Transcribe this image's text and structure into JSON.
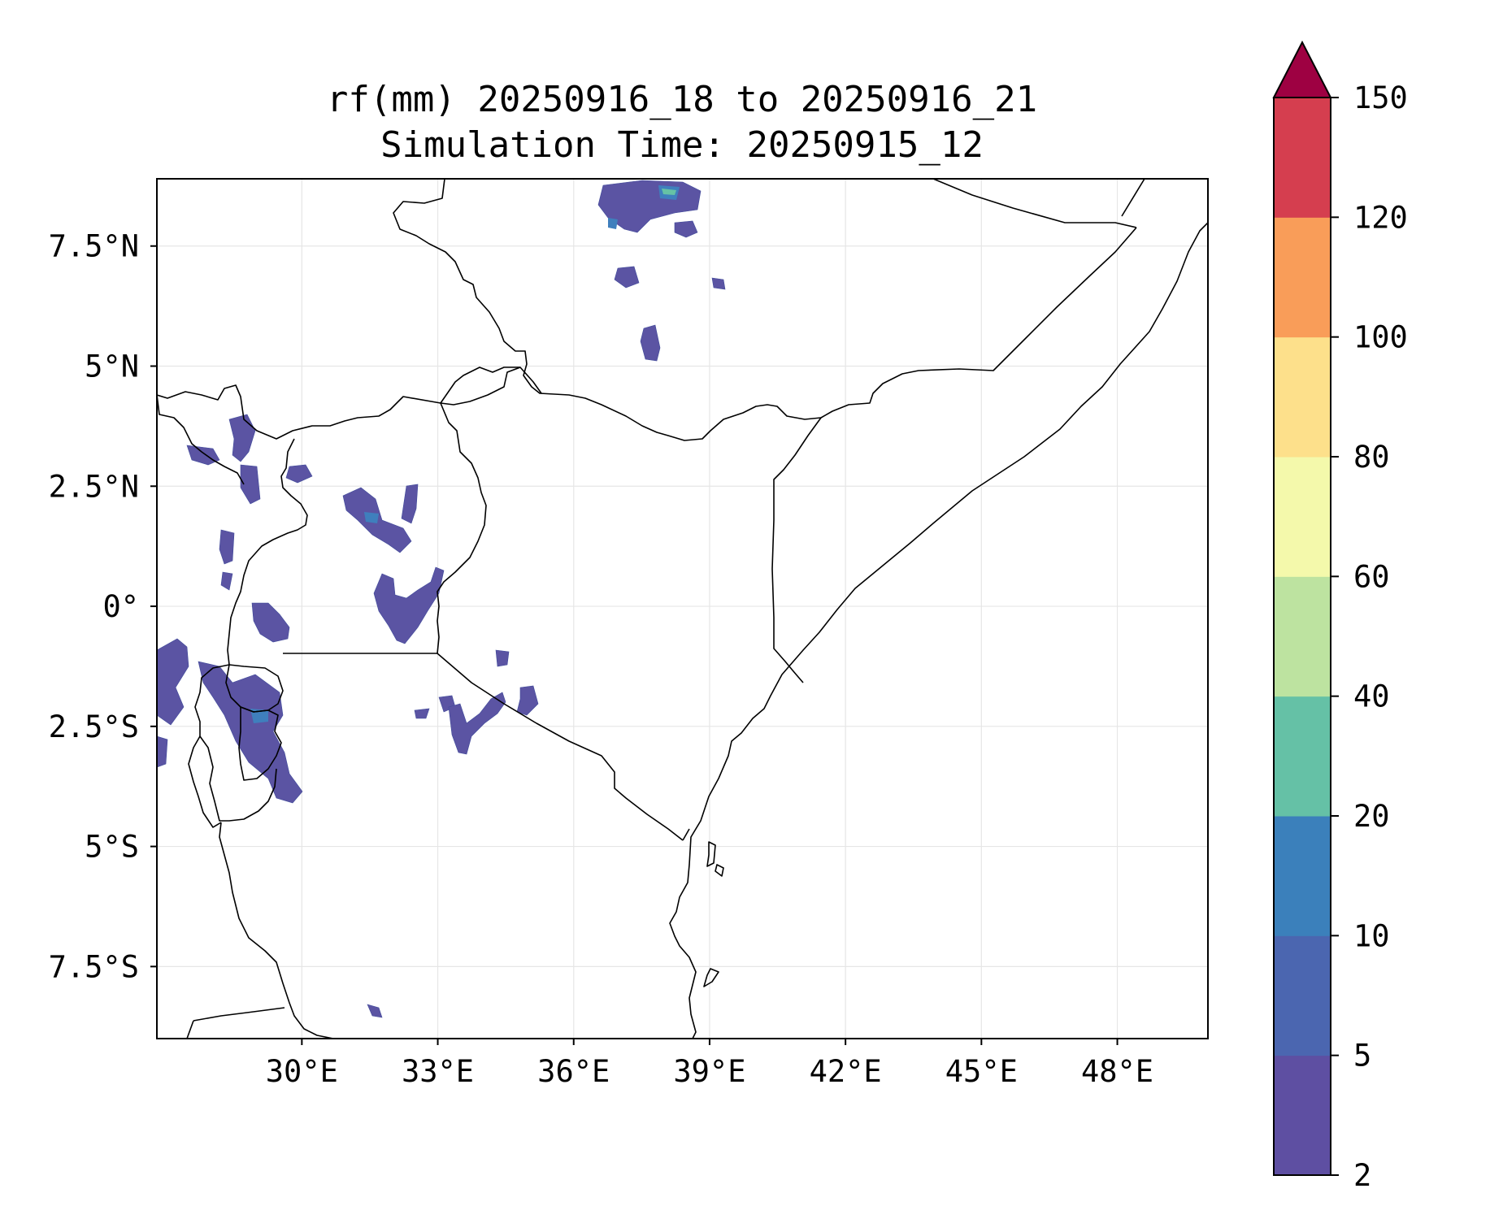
{
  "title": {
    "line1": "rf(mm) 20250916_18 to 20250916_21",
    "line2": "Simulation Time: 20250915_12"
  },
  "map": {
    "lon_range": [
      26.8,
      50.0
    ],
    "lat_range": [
      -9.0,
      8.9
    ],
    "lon_ticks": [
      {
        "value": 30,
        "label": "30°E"
      },
      {
        "value": 33,
        "label": "33°E"
      },
      {
        "value": 36,
        "label": "36°E"
      },
      {
        "value": 39,
        "label": "39°E"
      },
      {
        "value": 42,
        "label": "42°E"
      },
      {
        "value": 45,
        "label": "45°E"
      },
      {
        "value": 48,
        "label": "48°E"
      }
    ],
    "lat_ticks": [
      {
        "value": 7.5,
        "label": "7.5°N"
      },
      {
        "value": 5,
        "label": "5°N"
      },
      {
        "value": 2.5,
        "label": "2.5°N"
      },
      {
        "value": 0,
        "label": "0°"
      },
      {
        "value": -2.5,
        "label": "2.5°S"
      },
      {
        "value": -5,
        "label": "5°S"
      },
      {
        "value": -7.5,
        "label": "7.5°S"
      }
    ],
    "gridlines": true
  },
  "colorbar": {
    "extend": "max",
    "levels": [
      {
        "label": "2"
      },
      {
        "label": "5"
      },
      {
        "label": "10"
      },
      {
        "label": "20"
      },
      {
        "label": "40"
      },
      {
        "label": "60"
      },
      {
        "label": "80"
      },
      {
        "label": "100"
      },
      {
        "label": "120"
      },
      {
        "label": "150"
      }
    ],
    "colors": [
      "#5e4fa2",
      "#4b66b0",
      "#3b80bb",
      "#65c1a6",
      "#bde3a0",
      "#f4f9ab",
      "#fde08b",
      "#f99d59",
      "#d53e4f"
    ],
    "extend_color": "#9e0142"
  }
}
